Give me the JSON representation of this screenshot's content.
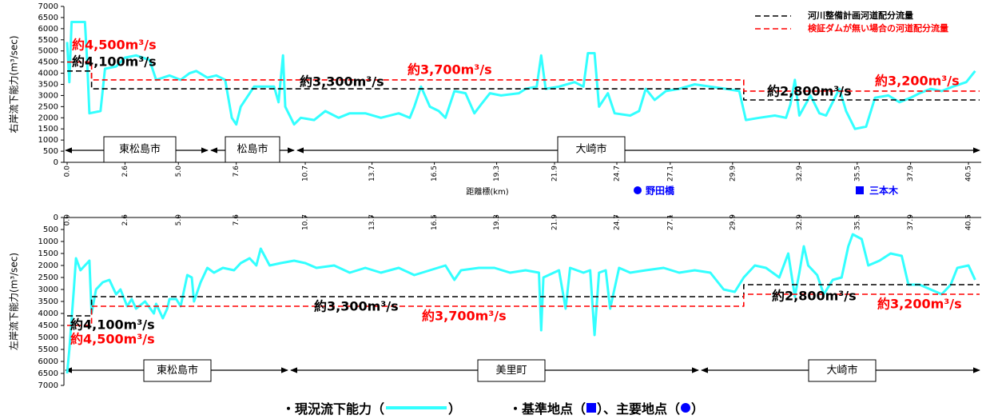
{
  "chart_data": [
    {
      "type": "line",
      "y_label": "右岸流下能力(m³/sec)",
      "x_label": "距離標(km)",
      "xlim": [
        0,
        41
      ],
      "xticks": [
        {
          "value": 0,
          "label": "0.0"
        },
        2.6,
        {
          "value": 5,
          "label": "5.0"
        },
        7.6,
        10.7,
        13.7,
        16.5,
        19.3,
        21.9,
        24.7,
        27.1,
        29.9,
        32.9,
        35.5,
        37.9,
        40.5
      ],
      "xtick_position": "bottom",
      "ylim": [
        0,
        7000
      ],
      "yticks": [
        0,
        500,
        1000,
        1500,
        2000,
        2500,
        3000,
        3500,
        4000,
        4500,
        5000,
        5500,
        6000,
        6500,
        7000
      ],
      "y_inverted": false,
      "legend": "upper right",
      "series": [
        {
          "color": "#33ffff",
          "style": "solid",
          "x": [
            0,
            0.1,
            0.2,
            0.8,
            0.9,
            1.0,
            1.5,
            1.7,
            2.2,
            2.6,
            3.1,
            3.7,
            4.0,
            4.6,
            5.1,
            5.5,
            5.8,
            6.3,
            6.7,
            7.1,
            7.4,
            7.6,
            7.8,
            8.4,
            8.9,
            9.3,
            9.5,
            9.7,
            9.8,
            10.2,
            10.5,
            11.1,
            11.6,
            12.2,
            12.7,
            13.4,
            14.1,
            14.9,
            15.4,
            15.6,
            15.9,
            16.3,
            16.7,
            17.0,
            17.4,
            17.9,
            18.3,
            18.6,
            19.0,
            19.5,
            20.3,
            20.6,
            21.1,
            21.3,
            21.5,
            22.1,
            22.8,
            23.2,
            23.4,
            23.7,
            23.9,
            24.3,
            24.6,
            25.3,
            25.7,
            26.0,
            26.4,
            26.9,
            27.5,
            28.2,
            28.9,
            29.6,
            30.2,
            30.5,
            31.1,
            31.8,
            32.3,
            32.5,
            32.7,
            32.9,
            33.4,
            33.8,
            34.1,
            34.7,
            35.0,
            35.4,
            35.9,
            36.3,
            36.9,
            37.4,
            37.9,
            38.3,
            38.8,
            39.3,
            39.8,
            40.4,
            40.8
          ],
          "values": [
            5400,
            3600,
            6300,
            6300,
            4500,
            2200,
            2300,
            4200,
            4300,
            4700,
            4800,
            4600,
            3700,
            3900,
            3700,
            4000,
            4100,
            3800,
            3900,
            3700,
            2000,
            1700,
            2500,
            3400,
            3400,
            3400,
            2700,
            4800,
            2500,
            1700,
            2000,
            1900,
            2300,
            2000,
            2200,
            2200,
            2000,
            2200,
            2000,
            2500,
            3400,
            2500,
            2300,
            2000,
            3200,
            3100,
            2200,
            2600,
            3100,
            3000,
            3100,
            3300,
            3400,
            4800,
            3300,
            3400,
            3600,
            3400,
            4900,
            4900,
            2500,
            3100,
            2200,
            2100,
            2300,
            3300,
            2800,
            3200,
            3300,
            3500,
            3400,
            3300,
            3200,
            1900,
            2000,
            2100,
            2000,
            2600,
            3700,
            2100,
            3000,
            2200,
            2100,
            3300,
            2300,
            1500,
            1600,
            2900,
            3000,
            2700,
            2900,
            3100,
            3300,
            3200,
            3400,
            3600,
            4100
          ]
        },
        {
          "name": "河川整備計画河道配分流量",
          "color": "#000000",
          "style": "dashed",
          "x": [
            0,
            1.1,
            1.1,
            30.4,
            30.4,
            41
          ],
          "values": [
            4100,
            4100,
            3300,
            3300,
            2800,
            2800
          ]
        },
        {
          "name": "検証ダムが無い場合の河道配分流量",
          "color": "#ff0000",
          "style": "dashed",
          "x": [
            0,
            1.1,
            1.1,
            30.4,
            30.4,
            41
          ],
          "values": [
            4500,
            4500,
            3700,
            3700,
            3200,
            3200
          ]
        }
      ],
      "annotations": [
        {
          "text": "約4,500m³/s",
          "color": "#ff0000"
        },
        {
          "text": "約4,100m³/s",
          "color": "#000000"
        },
        {
          "text": "約3,300m³/s",
          "color": "#000000"
        },
        {
          "text": "約3,700m³/s",
          "color": "#ff0000"
        },
        {
          "text": "約2,800m³/s",
          "color": "#000000"
        },
        {
          "text": "約3,200m³/s",
          "color": "#ff0000"
        }
      ],
      "regions": [
        {
          "label": "東松島市"
        },
        {
          "label": "松島市"
        },
        {
          "label": "大崎市"
        }
      ]
    },
    {
      "type": "line",
      "y_label": "左岸流下能力(m³/sec)",
      "xlim": [
        0,
        41
      ],
      "xticks": [
        {
          "value": 0,
          "label": "0.0"
        },
        2.6,
        {
          "value": 5,
          "label": "5.0"
        },
        7.6,
        10.7,
        13.7,
        16.5,
        19.3,
        21.9,
        24.7,
        27.1,
        29.9,
        32.9,
        35.5,
        37.9,
        40.5
      ],
      "xtick_position": "top",
      "ylim": [
        0,
        7000
      ],
      "yticks": [
        0,
        500,
        1000,
        1500,
        2000,
        2500,
        3000,
        3500,
        4000,
        4500,
        5000,
        5500,
        6000,
        6500,
        7000
      ],
      "y_inverted": true,
      "series": [
        {
          "color": "#33ffff",
          "style": "solid",
          "x": [
            0,
            0.1,
            0.3,
            0.4,
            0.6,
            0.8,
            1.0,
            1.1,
            1.3,
            1.6,
            1.9,
            2.2,
            2.4,
            2.7,
            2.9,
            3.1,
            3.5,
            3.9,
            4.0,
            4.3,
            4.5,
            4.6,
            4.9,
            5.1,
            5.4,
            5.6,
            5.7,
            6.0,
            6.3,
            6.6,
            7.0,
            7.5,
            7.8,
            8.2,
            8.5,
            8.7,
            9.1,
            9.6,
            10.2,
            10.7,
            11.2,
            12.0,
            12.7,
            13.4,
            14.1,
            14.9,
            15.6,
            16.3,
            17.0,
            17.4,
            17.7,
            18.5,
            19.2,
            19.9,
            20.6,
            21.2,
            21.3,
            21.4,
            22.1,
            22.4,
            22.6,
            23.2,
            23.5,
            23.7,
            23.9,
            24.2,
            24.4,
            24.8,
            25.3,
            26.0,
            26.8,
            27.5,
            28.2,
            28.9,
            29.5,
            30.0,
            30.4,
            30.9,
            31.4,
            32.0,
            32.4,
            32.7,
            32.9,
            33.1,
            33.3,
            33.7,
            34.0,
            34.4,
            34.8,
            35.1,
            35.3,
            35.7,
            36.0,
            36.5,
            37.0,
            37.5,
            37.8,
            38.3,
            38.8,
            39.3,
            39.7,
            40.0,
            40.5,
            40.8
          ],
          "values": [
            6500,
            5500,
            3000,
            1700,
            2200,
            2000,
            1800,
            4000,
            3000,
            2700,
            2600,
            3200,
            3000,
            3700,
            3400,
            3800,
            3500,
            4000,
            3600,
            4200,
            3800,
            3400,
            3400,
            3700,
            2400,
            2500,
            3500,
            2700,
            2100,
            2300,
            2100,
            2200,
            1900,
            1700,
            2000,
            1300,
            2000,
            1900,
            1800,
            1900,
            2100,
            2000,
            2300,
            2100,
            2300,
            2100,
            2400,
            2200,
            2000,
            2600,
            2200,
            2100,
            2100,
            2300,
            2200,
            2300,
            4700,
            2500,
            2200,
            3800,
            2100,
            2300,
            2200,
            4900,
            2300,
            2200,
            3800,
            2100,
            2300,
            2200,
            2100,
            2300,
            2200,
            2300,
            3000,
            3100,
            2500,
            2000,
            2100,
            2500,
            1500,
            3300,
            2300,
            1200,
            2000,
            2400,
            3200,
            2600,
            2500,
            1200,
            700,
            900,
            2000,
            1800,
            1500,
            1600,
            2800,
            2800,
            3000,
            3200,
            2800,
            2100,
            2000,
            2600
          ]
        },
        {
          "color": "#000000",
          "style": "dashed",
          "x": [
            0,
            1.1,
            1.1,
            30.4,
            30.4,
            41
          ],
          "values": [
            4100,
            4100,
            3300,
            3300,
            2800,
            2800
          ]
        },
        {
          "color": "#ff0000",
          "style": "dashed",
          "x": [
            0,
            1.1,
            1.1,
            30.4,
            30.4,
            41
          ],
          "values": [
            4500,
            4500,
            3700,
            3700,
            3200,
            3200
          ]
        }
      ],
      "annotations": [
        {
          "text": "約4,100m³/s",
          "color": "#000000"
        },
        {
          "text": "約4,500m³/s",
          "color": "#ff0000"
        },
        {
          "text": "約3,300m³/s",
          "color": "#000000"
        },
        {
          "text": "約3,700m³/s",
          "color": "#ff0000"
        },
        {
          "text": "約2,800m³/s",
          "color": "#000000"
        },
        {
          "text": "約3,200m³/s",
          "color": "#ff0000"
        }
      ],
      "regions": [
        {
          "label": "東松島市"
        },
        {
          "label": "美里町"
        },
        {
          "label": "大崎市"
        }
      ]
    }
  ],
  "markers": [
    {
      "label": "野田橋"
    },
    {
      "label": "三本木"
    }
  ],
  "footer": {
    "current": "・現況流下能力（",
    "current_end": "）",
    "points": "・基準地点（",
    "points_mid": "）、主要地点（",
    "points_end": "）"
  }
}
